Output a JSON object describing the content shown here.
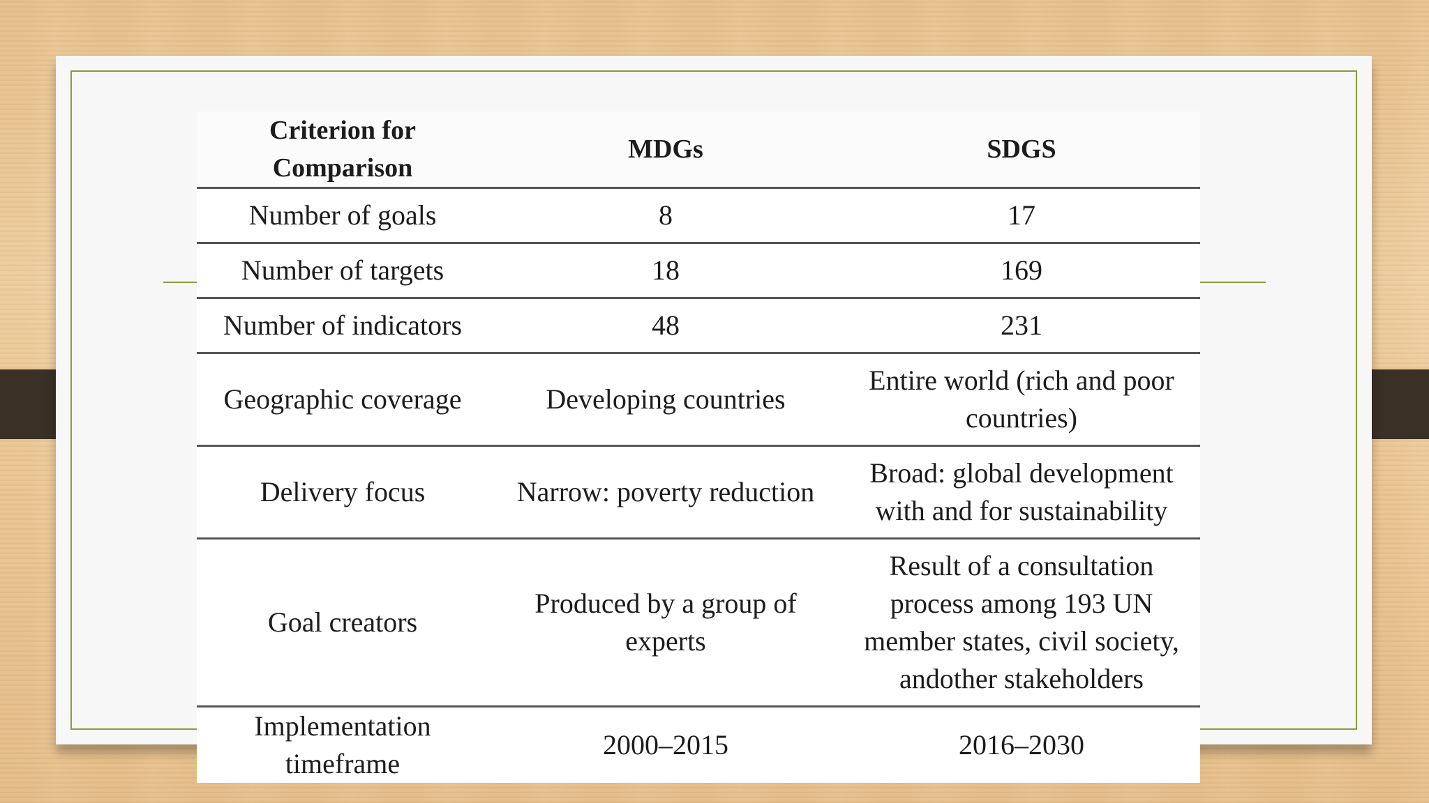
{
  "table": {
    "headers": [
      "Criterion for Comparison",
      "MDGs",
      "SDGS"
    ],
    "rows": [
      [
        "Number of goals",
        "8",
        "17"
      ],
      [
        "Number of targets",
        "18",
        "169"
      ],
      [
        "Number of indicators",
        "48",
        "231"
      ],
      [
        "Geographic coverage",
        "Developing countries",
        "Entire world (rich and poor countries)"
      ],
      [
        "Delivery focus",
        "Narrow: poverty reduction",
        "Broad: global development with and for sustainability"
      ],
      [
        "Goal creators",
        "Produced by a group of experts",
        "Result of a consultation process among 193 UN member states, civil society, andother stakeholders"
      ],
      [
        "Implementation timeframe",
        "2000–2015",
        "2016–2030"
      ]
    ]
  },
  "colors": {
    "frame_accent": "#8a9a3c",
    "side_tab": "#3a3026"
  }
}
